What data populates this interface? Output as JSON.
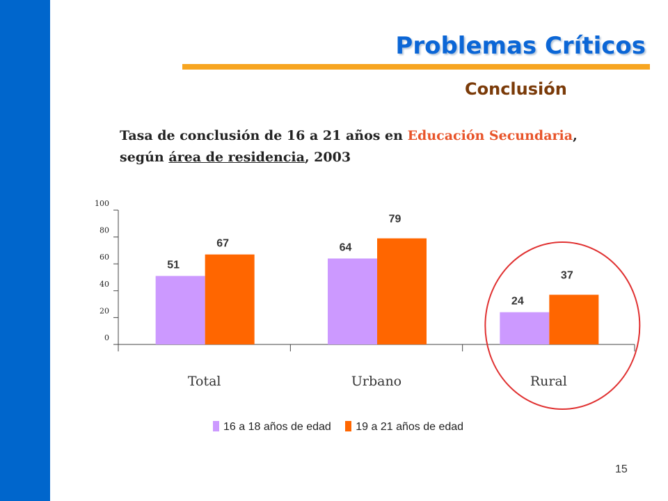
{
  "slide": {
    "title": "Problemas Críticos",
    "subtitle": "Conclusión",
    "heading_part1": "Tasa de conclusión de 16 a 21 años en ",
    "heading_highlight": "Educación Secundaria",
    "heading_part2": ",",
    "heading_part3": "según ",
    "heading_underlined": "área de residencia",
    "heading_part4": ", 2003",
    "page_number": "15"
  },
  "colors": {
    "sidebar": "#0066cc",
    "accent_rule": "#f7a520",
    "highlight_text": "#e8542a",
    "circle": "#e03030"
  },
  "chart_data": {
    "type": "bar",
    "title": "",
    "xlabel": "",
    "ylabel": "",
    "categories": [
      "Total",
      "Urbano",
      "Rural"
    ],
    "series": [
      {
        "name": "16 a 18 años de edad",
        "values": [
          51,
          64,
          24
        ],
        "color": "#cc99ff"
      },
      {
        "name": "19 a 21 años de edad",
        "values": [
          67,
          79,
          37
        ],
        "color": "#ff6600"
      }
    ],
    "ylim": [
      0,
      100
    ],
    "yticks": [
      "0",
      "20",
      "40",
      "60",
      "80",
      "100"
    ],
    "grid": false,
    "legend_position": "bottom",
    "annotation": "circle around Rural"
  }
}
